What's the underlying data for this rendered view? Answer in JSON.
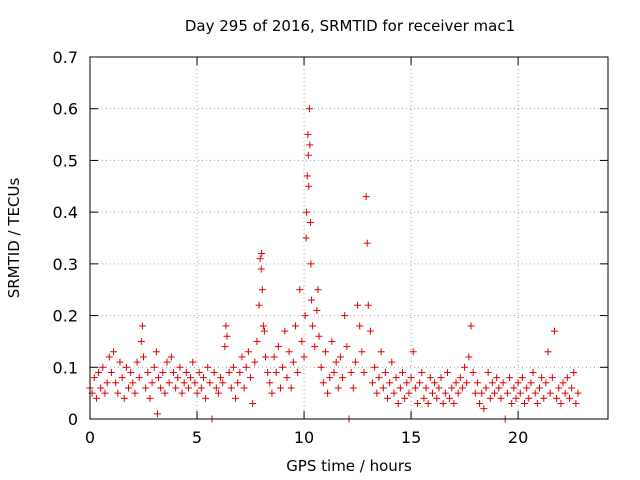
{
  "chart_data": {
    "type": "scatter",
    "title": "Day 295 of 2016, SRMTID for receiver mac1",
    "xlabel": "GPS time / hours",
    "ylabel": "SRMTID / TECUs",
    "xlim": [
      0,
      24.2
    ],
    "ylim": [
      0,
      0.7
    ],
    "xticks": [
      0,
      5,
      10,
      15,
      20
    ],
    "yticks": [
      0,
      0.1,
      0.2,
      0.3,
      0.4,
      0.5,
      0.6,
      0.7
    ],
    "xtick_labels": [
      "0",
      "5",
      "10",
      "15",
      "20"
    ],
    "ytick_labels": [
      "0",
      "0.1",
      "0.2",
      "0.3",
      "0.4",
      "0.5",
      "0.6",
      "0.7"
    ],
    "grid": true,
    "marker": "plus",
    "marker_color": "#e00000",
    "series": [
      {
        "name": "SRMTID",
        "points": [
          [
            0.0,
            0.06
          ],
          [
            0.1,
            0.05
          ],
          [
            0.2,
            0.08
          ],
          [
            0.3,
            0.04
          ],
          [
            0.4,
            0.09
          ],
          [
            0.5,
            0.06
          ],
          [
            0.6,
            0.1
          ],
          [
            0.7,
            0.05
          ],
          [
            0.8,
            0.07
          ],
          [
            0.9,
            0.12
          ],
          [
            1.0,
            0.09
          ],
          [
            1.1,
            0.13
          ],
          [
            1.2,
            0.07
          ],
          [
            1.3,
            0.05
          ],
          [
            1.4,
            0.11
          ],
          [
            1.5,
            0.08
          ],
          [
            1.6,
            0.04
          ],
          [
            1.7,
            0.1
          ],
          [
            1.8,
            0.06
          ],
          [
            1.9,
            0.09
          ],
          [
            2.0,
            0.07
          ],
          [
            2.1,
            0.05
          ],
          [
            2.2,
            0.11
          ],
          [
            2.3,
            0.08
          ],
          [
            2.4,
            0.15
          ],
          [
            2.45,
            0.18
          ],
          [
            2.5,
            0.12
          ],
          [
            2.6,
            0.06
          ],
          [
            2.7,
            0.09
          ],
          [
            2.8,
            0.04
          ],
          [
            2.9,
            0.07
          ],
          [
            3.0,
            0.1
          ],
          [
            3.1,
            0.13
          ],
          [
            3.15,
            0.01
          ],
          [
            3.2,
            0.08
          ],
          [
            3.3,
            0.06
          ],
          [
            3.4,
            0.09
          ],
          [
            3.5,
            0.05
          ],
          [
            3.6,
            0.11
          ],
          [
            3.7,
            0.07
          ],
          [
            3.8,
            0.12
          ],
          [
            3.9,
            0.09
          ],
          [
            4.0,
            0.06
          ],
          [
            4.1,
            0.08
          ],
          [
            4.2,
            0.1
          ],
          [
            4.3,
            0.05
          ],
          [
            4.4,
            0.07
          ],
          [
            4.5,
            0.09
          ],
          [
            4.6,
            0.06
          ],
          [
            4.7,
            0.08
          ],
          [
            4.8,
            0.11
          ],
          [
            4.9,
            0.07
          ],
          [
            5.0,
            0.05
          ],
          [
            5.1,
            0.09
          ],
          [
            5.2,
            0.06
          ],
          [
            5.3,
            0.08
          ],
          [
            5.4,
            0.04
          ],
          [
            5.5,
            0.1
          ],
          [
            5.6,
            0.07
          ],
          [
            5.7,
            0.0
          ],
          [
            5.8,
            0.09
          ],
          [
            5.9,
            0.06
          ],
          [
            6.0,
            0.05
          ],
          [
            6.1,
            0.08
          ],
          [
            6.2,
            0.07
          ],
          [
            6.3,
            0.14
          ],
          [
            6.35,
            0.18
          ],
          [
            6.4,
            0.16
          ],
          [
            6.5,
            0.09
          ],
          [
            6.6,
            0.06
          ],
          [
            6.7,
            0.1
          ],
          [
            6.8,
            0.04
          ],
          [
            6.9,
            0.07
          ],
          [
            7.0,
            0.09
          ],
          [
            7.1,
            0.12
          ],
          [
            7.2,
            0.06
          ],
          [
            7.3,
            0.1
          ],
          [
            7.4,
            0.13
          ],
          [
            7.5,
            0.08
          ],
          [
            7.6,
            0.03
          ],
          [
            7.7,
            0.11
          ],
          [
            7.8,
            0.15
          ],
          [
            7.9,
            0.22
          ],
          [
            7.95,
            0.31
          ],
          [
            8.0,
            0.29
          ],
          [
            8.02,
            0.32
          ],
          [
            8.05,
            0.25
          ],
          [
            8.1,
            0.18
          ],
          [
            8.15,
            0.17
          ],
          [
            8.2,
            0.12
          ],
          [
            8.3,
            0.09
          ],
          [
            8.4,
            0.07
          ],
          [
            8.5,
            0.05
          ],
          [
            8.6,
            0.12
          ],
          [
            8.7,
            0.09
          ],
          [
            8.8,
            0.14
          ],
          [
            8.9,
            0.06
          ],
          [
            9.0,
            0.1
          ],
          [
            9.1,
            0.17
          ],
          [
            9.2,
            0.08
          ],
          [
            9.3,
            0.13
          ],
          [
            9.4,
            0.06
          ],
          [
            9.5,
            0.11
          ],
          [
            9.6,
            0.18
          ],
          [
            9.7,
            0.09
          ],
          [
            9.8,
            0.25
          ],
          [
            9.9,
            0.15
          ],
          [
            10.0,
            0.12
          ],
          [
            10.05,
            0.2
          ],
          [
            10.1,
            0.35
          ],
          [
            10.12,
            0.4
          ],
          [
            10.15,
            0.47
          ],
          [
            10.18,
            0.55
          ],
          [
            10.2,
            0.51
          ],
          [
            10.22,
            0.45
          ],
          [
            10.25,
            0.6
          ],
          [
            10.27,
            0.53
          ],
          [
            10.3,
            0.38
          ],
          [
            10.32,
            0.3
          ],
          [
            10.35,
            0.23
          ],
          [
            10.4,
            0.18
          ],
          [
            10.5,
            0.14
          ],
          [
            10.6,
            0.21
          ],
          [
            10.65,
            0.25
          ],
          [
            10.7,
            0.16
          ],
          [
            10.8,
            0.1
          ],
          [
            10.9,
            0.07
          ],
          [
            11.0,
            0.13
          ],
          [
            11.1,
            0.05
          ],
          [
            11.2,
            0.08
          ],
          [
            11.3,
            0.15
          ],
          [
            11.4,
            0.09
          ],
          [
            11.5,
            0.11
          ],
          [
            11.6,
            0.06
          ],
          [
            11.7,
            0.12
          ],
          [
            11.8,
            0.08
          ],
          [
            11.9,
            0.2
          ],
          [
            12.0,
            0.14
          ],
          [
            12.1,
            0.0
          ],
          [
            12.2,
            0.09
          ],
          [
            12.3,
            0.06
          ],
          [
            12.4,
            0.11
          ],
          [
            12.5,
            0.22
          ],
          [
            12.6,
            0.18
          ],
          [
            12.7,
            0.13
          ],
          [
            12.8,
            0.09
          ],
          [
            12.9,
            0.43
          ],
          [
            12.95,
            0.34
          ],
          [
            13.0,
            0.22
          ],
          [
            13.1,
            0.17
          ],
          [
            13.2,
            0.07
          ],
          [
            13.3,
            0.1
          ],
          [
            13.4,
            0.05
          ],
          [
            13.5,
            0.08
          ],
          [
            13.6,
            0.13
          ],
          [
            13.7,
            0.06
          ],
          [
            13.8,
            0.09
          ],
          [
            13.9,
            0.04
          ],
          [
            14.0,
            0.07
          ],
          [
            14.1,
            0.11
          ],
          [
            14.2,
            0.05
          ],
          [
            14.3,
            0.08
          ],
          [
            14.4,
            0.03
          ],
          [
            14.5,
            0.06
          ],
          [
            14.6,
            0.09
          ],
          [
            14.7,
            0.04
          ],
          [
            14.8,
            0.07
          ],
          [
            14.9,
            0.05
          ],
          [
            15.0,
            0.08
          ],
          [
            15.1,
            0.13
          ],
          [
            15.2,
            0.06
          ],
          [
            15.3,
            0.03
          ],
          [
            15.4,
            0.07
          ],
          [
            15.5,
            0.09
          ],
          [
            15.6,
            0.04
          ],
          [
            15.7,
            0.06
          ],
          [
            15.8,
            0.03
          ],
          [
            15.9,
            0.08
          ],
          [
            16.0,
            0.05
          ],
          [
            16.1,
            0.07
          ],
          [
            16.2,
            0.04
          ],
          [
            16.3,
            0.06
          ],
          [
            16.4,
            0.08
          ],
          [
            16.5,
            0.03
          ],
          [
            16.6,
            0.05
          ],
          [
            16.7,
            0.09
          ],
          [
            16.8,
            0.04
          ],
          [
            16.9,
            0.06
          ],
          [
            17.0,
            0.03
          ],
          [
            17.1,
            0.07
          ],
          [
            17.2,
            0.05
          ],
          [
            17.3,
            0.08
          ],
          [
            17.4,
            0.06
          ],
          [
            17.5,
            0.1
          ],
          [
            17.6,
            0.07
          ],
          [
            17.7,
            0.12
          ],
          [
            17.8,
            0.18
          ],
          [
            17.9,
            0.09
          ],
          [
            18.0,
            0.05
          ],
          [
            18.1,
            0.07
          ],
          [
            18.2,
            0.03
          ],
          [
            18.3,
            0.05
          ],
          [
            18.4,
            0.02
          ],
          [
            18.5,
            0.06
          ],
          [
            18.6,
            0.09
          ],
          [
            18.7,
            0.04
          ],
          [
            18.8,
            0.07
          ],
          [
            18.9,
            0.05
          ],
          [
            19.0,
            0.08
          ],
          [
            19.1,
            0.06
          ],
          [
            19.2,
            0.04
          ],
          [
            19.3,
            0.07
          ],
          [
            19.4,
            0.0
          ],
          [
            19.5,
            0.05
          ],
          [
            19.6,
            0.08
          ],
          [
            19.7,
            0.03
          ],
          [
            19.8,
            0.06
          ],
          [
            19.9,
            0.04
          ],
          [
            20.0,
            0.07
          ],
          [
            20.1,
            0.05
          ],
          [
            20.2,
            0.08
          ],
          [
            20.3,
            0.03
          ],
          [
            20.4,
            0.06
          ],
          [
            20.5,
            0.04
          ],
          [
            20.6,
            0.07
          ],
          [
            20.7,
            0.09
          ],
          [
            20.8,
            0.05
          ],
          [
            20.9,
            0.03
          ],
          [
            21.0,
            0.06
          ],
          [
            21.1,
            0.08
          ],
          [
            21.2,
            0.04
          ],
          [
            21.3,
            0.07
          ],
          [
            21.4,
            0.13
          ],
          [
            21.5,
            0.05
          ],
          [
            21.6,
            0.08
          ],
          [
            21.7,
            0.17
          ],
          [
            21.8,
            0.04
          ],
          [
            21.9,
            0.06
          ],
          [
            22.0,
            0.03
          ],
          [
            22.1,
            0.07
          ],
          [
            22.2,
            0.05
          ],
          [
            22.3,
            0.08
          ],
          [
            22.4,
            0.04
          ],
          [
            22.5,
            0.06
          ],
          [
            22.6,
            0.09
          ],
          [
            22.7,
            0.03
          ],
          [
            22.8,
            0.05
          ]
        ]
      }
    ]
  }
}
